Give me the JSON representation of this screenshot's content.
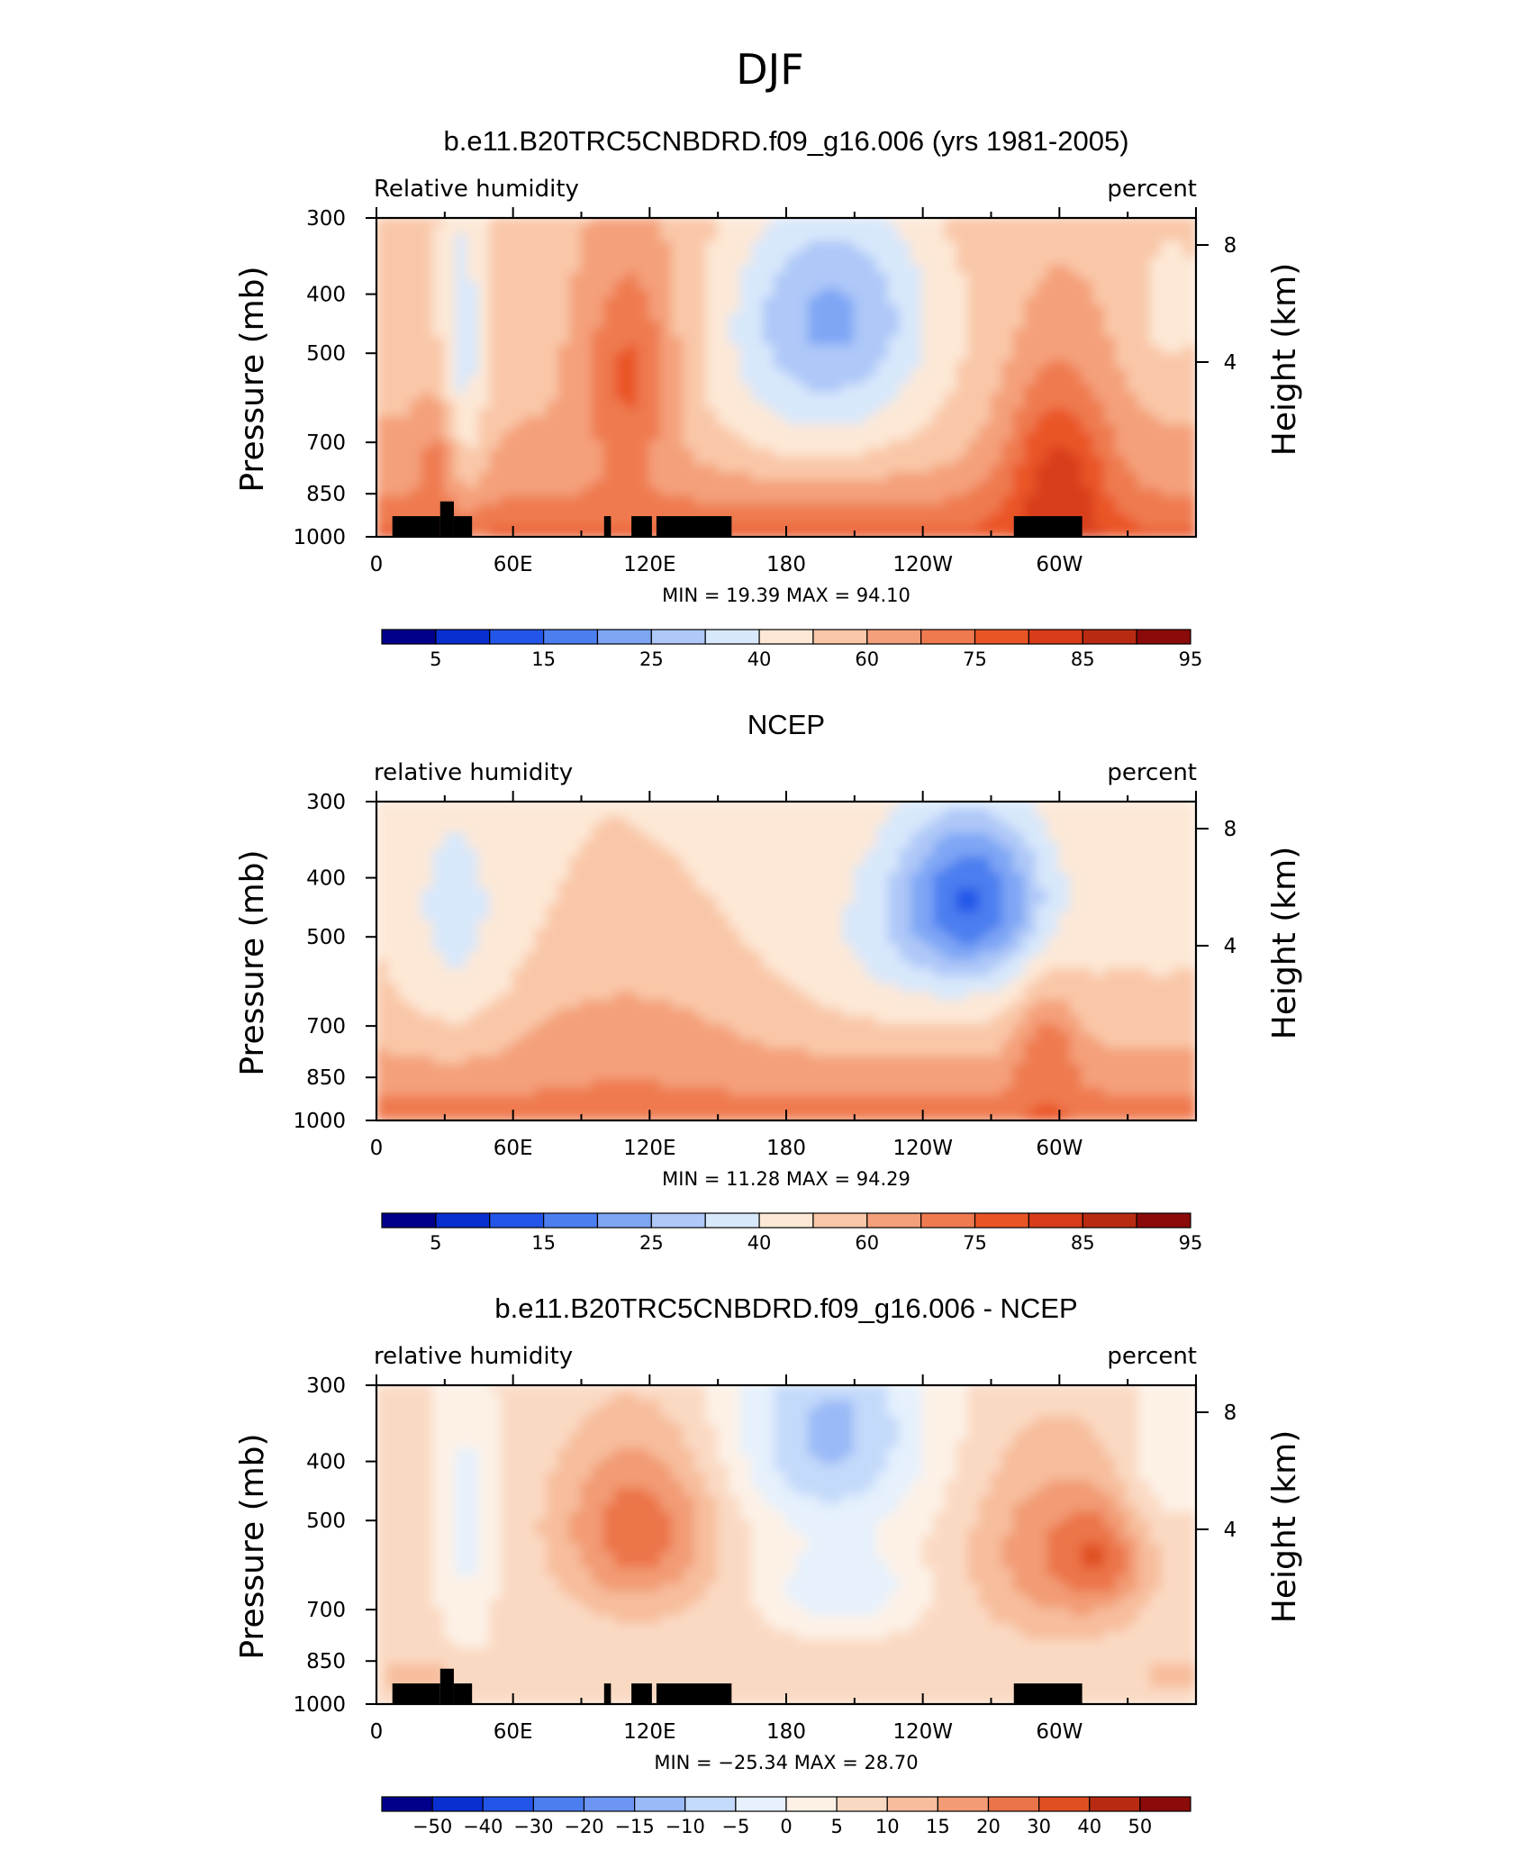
{
  "main_title": "DJF",
  "colors": {
    "rh_levels": [
      "#00008b",
      "#0a2fd0",
      "#2356e8",
      "#4c7ef0",
      "#7ea6f5",
      "#aec8f8",
      "#d8e8fb",
      "#fde8d6",
      "#f9c7a8",
      "#f4a07a",
      "#ef7a50",
      "#ea5526",
      "#d83c1a",
      "#b82a12",
      "#8b0a0a"
    ],
    "diff_levels": [
      "#00008b",
      "#0a2fd0",
      "#2356e8",
      "#4c7ef0",
      "#6d96f3",
      "#9ab9f7",
      "#c4dafa",
      "#e6f1fd",
      "#fdf1e6",
      "#fad9c2",
      "#f7bd9c",
      "#f29b74",
      "#ec744a",
      "#e04f22",
      "#b82a12",
      "#8b0a0a"
    ],
    "topography": "#000000"
  },
  "chart_data": [
    {
      "type": "heatmap",
      "title": "b.e11.B20TRC5CNBDRD.f09_g16.006 (yrs 1981-2005)",
      "left_label": "Relative  humidity",
      "right_label": "percent",
      "ylabel": "Pressure  (mb)",
      "y2label": "Height  (km)",
      "x_ticks": [
        "0",
        "60E",
        "120E",
        "180",
        "120W",
        "60W"
      ],
      "y_ticks": [
        "300",
        "400",
        "500",
        "700",
        "850",
        "1000"
      ],
      "y2_ticks": [
        "8",
        "4"
      ],
      "stats": "MIN =    19.39   MAX =    94.10",
      "colorbar_labels": [
        "5",
        "15",
        "25",
        "40",
        "60",
        "75",
        "85",
        "95"
      ],
      "scale": "rh",
      "fields": "model"
    },
    {
      "type": "heatmap",
      "title": "NCEP",
      "left_label": "relative  humidity",
      "right_label": "percent",
      "ylabel": "Pressure  (mb)",
      "y2label": "Height  (km)",
      "x_ticks": [
        "0",
        "60E",
        "120E",
        "180",
        "120W",
        "60W"
      ],
      "y_ticks": [
        "300",
        "400",
        "500",
        "700",
        "850",
        "1000"
      ],
      "y2_ticks": [
        "8",
        "4"
      ],
      "stats": "MIN =    11.28   MAX =    94.29",
      "colorbar_labels": [
        "5",
        "15",
        "25",
        "40",
        "60",
        "75",
        "85",
        "95"
      ],
      "scale": "rh",
      "fields": "obs"
    },
    {
      "type": "heatmap",
      "title": "b.e11.B20TRC5CNBDRD.f09_g16.006 - NCEP",
      "left_label": "relative  humidity",
      "right_label": "percent",
      "ylabel": "Pressure  (mb)",
      "y2label": "Height  (km)",
      "x_ticks": [
        "0",
        "60E",
        "120E",
        "180",
        "120W",
        "60W"
      ],
      "y_ticks": [
        "300",
        "400",
        "500",
        "700",
        "850",
        "1000"
      ],
      "y2_ticks": [
        "8",
        "4"
      ],
      "stats": "MIN =  −25.34   MAX =    28.70",
      "colorbar_labels": [
        "−50",
        "−40",
        "−30",
        "−20",
        "−15",
        "−10",
        "−5",
        "0",
        "5",
        "10",
        "15",
        "20",
        "30",
        "40",
        "50"
      ],
      "scale": "diff",
      "fields": "diff"
    }
  ]
}
